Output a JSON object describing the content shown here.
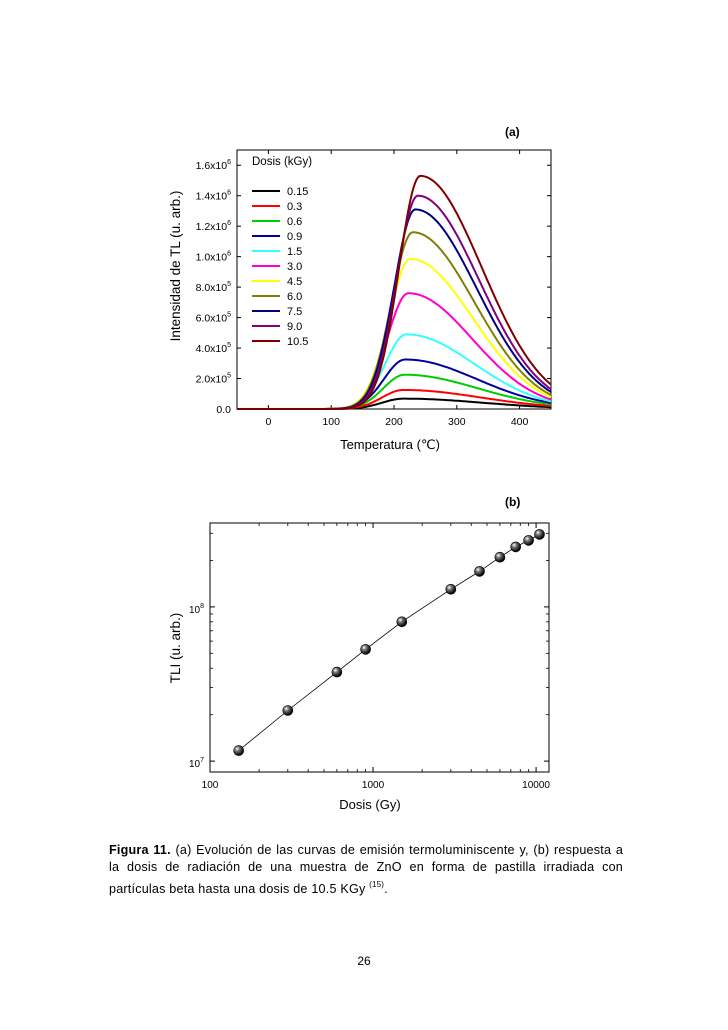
{
  "chart_data": [
    {
      "type": "line",
      "panel_label": "(a)",
      "title": "",
      "xlabel": "Temperatura (℃)",
      "ylabel": "Intensidad de TL (u. arb.)",
      "xlim": [
        -50,
        450
      ],
      "ylim": [
        0,
        1700000
      ],
      "x_ticks": [
        "0",
        "100",
        "200",
        "300",
        "400"
      ],
      "x_tick_values": [
        0,
        100,
        200,
        300,
        400
      ],
      "y_ticks": [
        {
          "value": 0,
          "mantissa": "0.0",
          "exp": ""
        },
        {
          "value": 200000,
          "mantissa": "2.0x10",
          "exp": "5"
        },
        {
          "value": 400000,
          "mantissa": "4.0x10",
          "exp": "5"
        },
        {
          "value": 600000,
          "mantissa": "6.0x10",
          "exp": "5"
        },
        {
          "value": 800000,
          "mantissa": "8.0x10",
          "exp": "5"
        },
        {
          "value": 1000000,
          "mantissa": "1.0x10",
          "exp": "6"
        },
        {
          "value": 1200000,
          "mantissa": "1.2x10",
          "exp": "6"
        },
        {
          "value": 1400000,
          "mantissa": "1.4x10",
          "exp": "6"
        },
        {
          "value": 1600000,
          "mantissa": "1.6x10",
          "exp": "6"
        }
      ],
      "legend_title": "Dosis (kGy)",
      "legend_placement": "top-left",
      "series": [
        {
          "name": "0.15",
          "color": "#000000",
          "peak_x": 215,
          "peak_y": 68000,
          "tail_450": 12000
        },
        {
          "name": "0.3",
          "color": "#ff0000",
          "peak_x": 215,
          "peak_y": 125000,
          "tail_450": 20000
        },
        {
          "name": "0.6",
          "color": "#00cc00",
          "peak_x": 217,
          "peak_y": 225000,
          "tail_450": 30000
        },
        {
          "name": "0.9",
          "color": "#0000a0",
          "peak_x": 218,
          "peak_y": 325000,
          "tail_450": 40000
        },
        {
          "name": "1.5",
          "color": "#33ffff",
          "peak_x": 220,
          "peak_y": 490000,
          "tail_450": 50000
        },
        {
          "name": "3.0",
          "color": "#ff00cc",
          "peak_x": 223,
          "peak_y": 760000,
          "tail_450": 62000
        },
        {
          "name": "4.5",
          "color": "#ffff00",
          "peak_x": 226,
          "peak_y": 985000,
          "tail_450": 78000
        },
        {
          "name": "6.0",
          "color": "#808000",
          "peak_x": 230,
          "peak_y": 1160000,
          "tail_450": 92000
        },
        {
          "name": "7.5",
          "color": "#000080",
          "peak_x": 234,
          "peak_y": 1310000,
          "tail_450": 112000
        },
        {
          "name": "9.0",
          "color": "#800080",
          "peak_x": 238,
          "peak_y": 1400000,
          "tail_450": 130000
        },
        {
          "name": "10.5",
          "color": "#800000",
          "peak_x": 242,
          "peak_y": 1530000,
          "tail_450": 160000
        }
      ]
    },
    {
      "type": "scatter",
      "panel_label": "(b)",
      "title": "",
      "xlabel": "Dosis (Gy)",
      "ylabel": "TLI (u. arb.)",
      "xscale": "log",
      "yscale": "log",
      "xlim": [
        100,
        12000
      ],
      "ylim": [
        8500000,
        350000000
      ],
      "x_ticks": [
        "100",
        "1000",
        "10000"
      ],
      "x_tick_values": [
        100,
        1000,
        10000
      ],
      "y_ticks": [
        {
          "value": 10000000,
          "mantissa": "10",
          "exp": "7"
        },
        {
          "value": 100000000,
          "mantissa": "10",
          "exp": "8"
        }
      ],
      "x": [
        150,
        300,
        600,
        900,
        1500,
        3000,
        4500,
        6000,
        7500,
        9000,
        10500
      ],
      "y": [
        11700000,
        21300000,
        37800000,
        53000000,
        80000000,
        130000000,
        170000000,
        210000000,
        245000000,
        270000000,
        295000000
      ],
      "marker_color": "#000000"
    }
  ],
  "caption": {
    "label": "Figura 11.",
    "text": "(a) Evolución de las curvas de emisión termoluminiscente y, (b) respuesta a la dosis de radiación de una muestra de ZnO en forma de pastilla irradiada con partículas beta hasta una dosis de 10.5 KGy",
    "ref": "(15)",
    "end": "."
  },
  "page_number": "26"
}
